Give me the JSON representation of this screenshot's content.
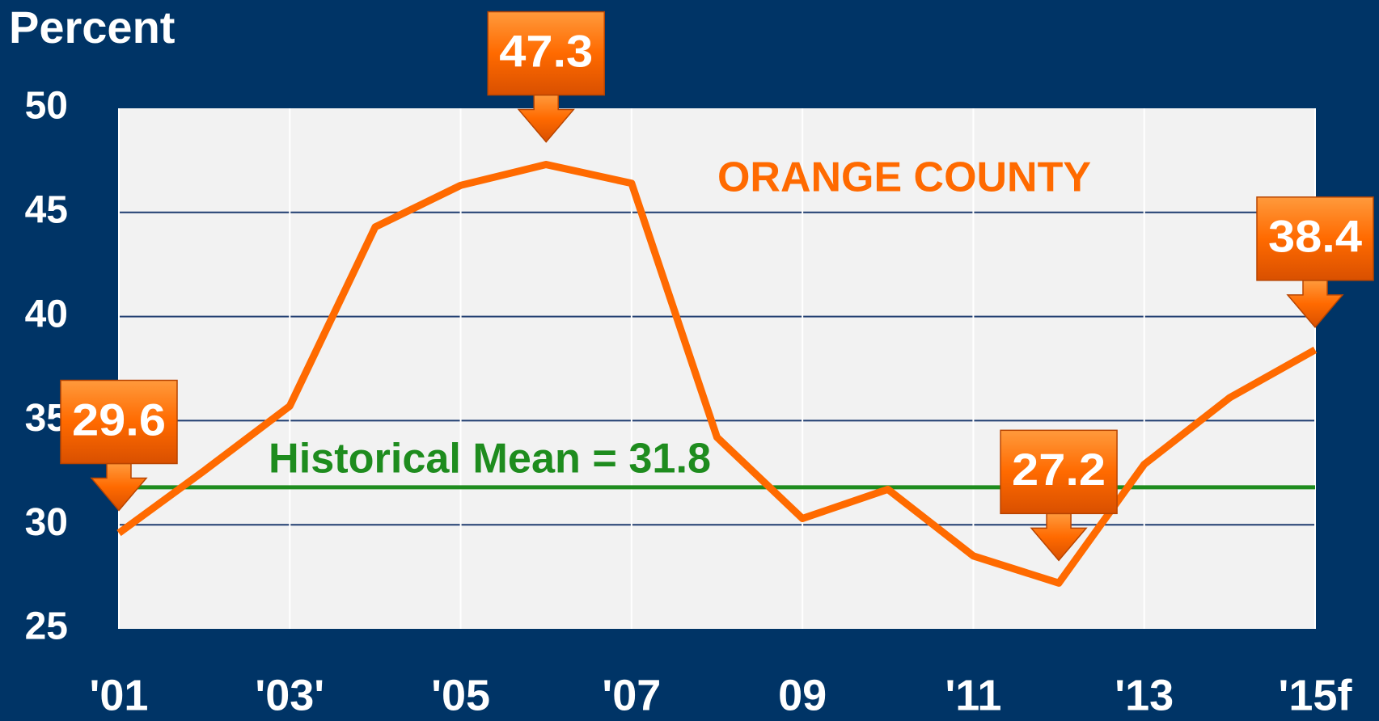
{
  "chart_data": {
    "type": "line",
    "y_label": "Percent",
    "categories": [
      "'01",
      null,
      "'03'",
      null,
      "'05",
      null,
      "'07",
      null,
      "09",
      null,
      "'11",
      null,
      "'13",
      null,
      "'15f"
    ],
    "series": [
      {
        "name": "ORANGE COUNTY",
        "color": "#ff6a00",
        "values": [
          29.6,
          32.6,
          35.7,
          44.3,
          46.3,
          47.3,
          46.4,
          34.2,
          30.3,
          31.7,
          28.5,
          27.2,
          32.9,
          36.1,
          38.4
        ]
      }
    ],
    "mean": {
      "label": "Historical Mean = 31.8",
      "value": 31.8,
      "color": "#1e8c1e"
    },
    "callouts": [
      0,
      5,
      11,
      14
    ],
    "ylim": [
      25,
      50
    ],
    "yticks": [
      25,
      30,
      35,
      40,
      45,
      50
    ],
    "grid": true
  }
}
